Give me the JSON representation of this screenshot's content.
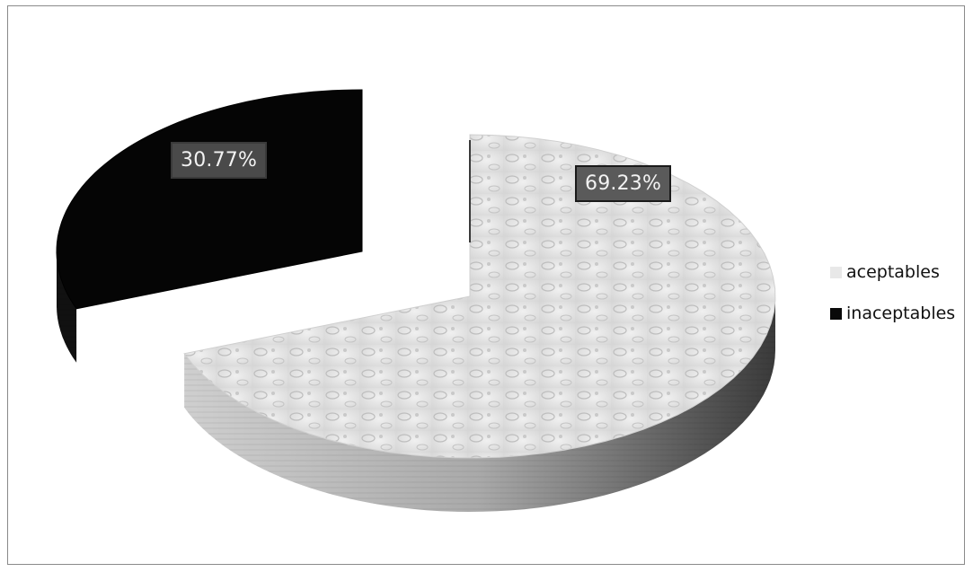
{
  "chart_data": {
    "type": "pie",
    "categories": [
      "aceptables",
      "inaceptables"
    ],
    "values": [
      69.23,
      30.77
    ],
    "data_labels": [
      "69.23%",
      "30.77%"
    ],
    "legend_placement": "right",
    "colors": {
      "aceptables": "#e6e6e6",
      "inaceptables": "#050505"
    },
    "style": "3d-exploded"
  },
  "legend": {
    "items": [
      {
        "label": "aceptables",
        "color": "#e6e6e6"
      },
      {
        "label": "inaceptables",
        "color": "#050505"
      }
    ]
  }
}
